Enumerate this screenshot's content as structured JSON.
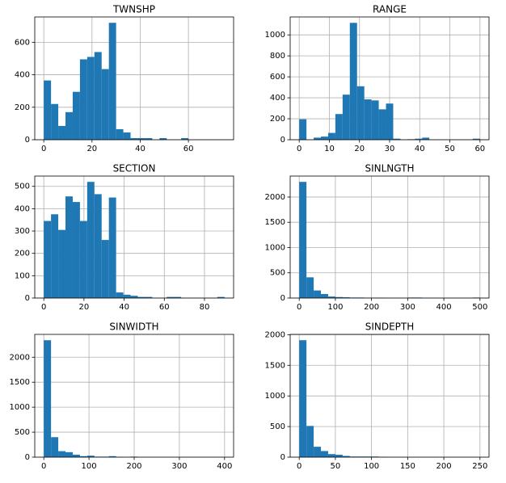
{
  "chart_data": [
    {
      "type": "histogram",
      "title": "TWNSHP",
      "color": "#1f77b4",
      "grid": true,
      "bins": [
        0,
        3,
        6,
        9,
        12,
        15,
        18,
        21,
        24,
        27,
        30,
        33,
        36,
        39,
        42,
        45,
        48,
        51,
        54,
        57,
        60,
        63,
        66,
        69,
        72,
        75
      ],
      "values": [
        365,
        220,
        85,
        170,
        295,
        495,
        510,
        540,
        435,
        720,
        65,
        45,
        10,
        10,
        10,
        0,
        10,
        0,
        0,
        10,
        0,
        0,
        0,
        0,
        0
      ],
      "xlim": [
        -3.75,
        78.75
      ],
      "ylim": [
        0,
        756
      ],
      "xticks": [
        0,
        20,
        40,
        60
      ],
      "yticks": [
        0,
        200,
        400,
        600
      ]
    },
    {
      "type": "histogram",
      "title": "RANGE",
      "color": "#1f77b4",
      "grid": true,
      "bins": [
        0,
        2.4,
        4.8,
        7.2,
        9.6,
        12,
        14.4,
        16.8,
        19.2,
        21.6,
        24,
        26.4,
        28.8,
        31.2,
        33.6,
        36,
        38.4,
        40.8,
        43.2,
        45.6,
        48,
        50.4,
        52.8,
        55.2,
        57.6,
        60
      ],
      "values": [
        195,
        0,
        20,
        30,
        65,
        245,
        430,
        1115,
        510,
        385,
        375,
        290,
        345,
        10,
        0,
        5,
        10,
        20,
        0,
        0,
        0,
        0,
        0,
        0,
        10
      ],
      "xlim": [
        -3,
        63
      ],
      "ylim": [
        0,
        1171
      ],
      "xticks": [
        0,
        10,
        20,
        30,
        40,
        50,
        60
      ],
      "yticks": [
        0,
        200,
        400,
        600,
        800,
        1000
      ]
    },
    {
      "type": "histogram",
      "title": "SECTION",
      "color": "#1f77b4",
      "grid": true,
      "bins": [
        0,
        3.6,
        7.2,
        10.8,
        14.4,
        18,
        21.6,
        25.2,
        28.8,
        32.4,
        36,
        39.6,
        43.2,
        46.8,
        50.4,
        54,
        57.6,
        61.2,
        64.8,
        68.4,
        72,
        75.6,
        79.2,
        82.8,
        86.4,
        90
      ],
      "values": [
        345,
        375,
        305,
        455,
        430,
        345,
        520,
        465,
        260,
        450,
        25,
        15,
        10,
        5,
        5,
        0,
        0,
        5,
        5,
        0,
        0,
        0,
        0,
        0,
        5
      ],
      "xlim": [
        -4.5,
        94.5
      ],
      "ylim": [
        0,
        546
      ],
      "xticks": [
        0,
        20,
        40,
        60,
        80
      ],
      "yticks": [
        0,
        100,
        200,
        300,
        400,
        500
      ]
    },
    {
      "type": "histogram",
      "title": "SINLNGTH",
      "color": "#1f77b4",
      "grid": true,
      "bins": [
        0,
        20,
        40,
        60,
        80,
        100,
        120,
        140,
        160,
        180,
        200,
        220,
        240,
        260,
        280,
        300,
        320,
        340,
        360,
        380,
        400,
        420,
        440,
        460,
        480,
        500
      ],
      "values": [
        2300,
        410,
        150,
        80,
        30,
        20,
        15,
        10,
        10,
        5,
        5,
        5,
        0,
        0,
        0,
        10,
        10,
        0,
        0,
        0,
        0,
        0,
        0,
        0,
        10
      ],
      "xlim": [
        -25,
        525
      ],
      "ylim": [
        0,
        2415
      ],
      "xticks": [
        0,
        100,
        200,
        300,
        400,
        500
      ],
      "yticks": [
        0,
        500,
        1000,
        1500,
        2000
      ]
    },
    {
      "type": "histogram",
      "title": "SINWIDTH",
      "color": "#1f77b4",
      "grid": true,
      "bins": [
        0,
        16,
        32,
        48,
        64,
        80,
        96,
        112,
        128,
        144,
        160,
        176,
        192,
        208,
        224,
        240,
        256,
        272,
        288,
        304,
        320,
        336,
        352,
        368,
        384,
        400
      ],
      "values": [
        2340,
        400,
        120,
        100,
        50,
        20,
        30,
        10,
        10,
        20,
        5,
        0,
        10,
        0,
        0,
        0,
        0,
        0,
        0,
        0,
        0,
        0,
        0,
        0,
        0
      ],
      "xlim": [
        -20,
        420
      ],
      "ylim": [
        0,
        2457
      ],
      "xticks": [
        0,
        100,
        200,
        300,
        400
      ],
      "yticks": [
        0,
        500,
        1000,
        1500,
        2000
      ]
    },
    {
      "type": "histogram",
      "title": "SINDEPTH",
      "color": "#1f77b4",
      "grid": true,
      "bins": [
        0,
        10,
        20,
        30,
        40,
        50,
        60,
        70,
        80,
        90,
        100,
        110,
        120,
        130,
        140,
        150,
        160,
        170,
        180,
        190,
        200,
        210,
        220,
        230,
        240,
        250
      ],
      "values": [
        1910,
        510,
        170,
        100,
        50,
        40,
        20,
        10,
        10,
        10,
        10,
        5,
        0,
        0,
        0,
        0,
        0,
        0,
        0,
        0,
        0,
        0,
        0,
        0,
        0
      ],
      "xlim": [
        -12.5,
        262.5
      ],
      "ylim": [
        0,
        2005
      ],
      "xticks": [
        0,
        50,
        100,
        150,
        200,
        250
      ],
      "yticks": [
        0,
        500,
        1000,
        1500,
        2000
      ]
    }
  ]
}
